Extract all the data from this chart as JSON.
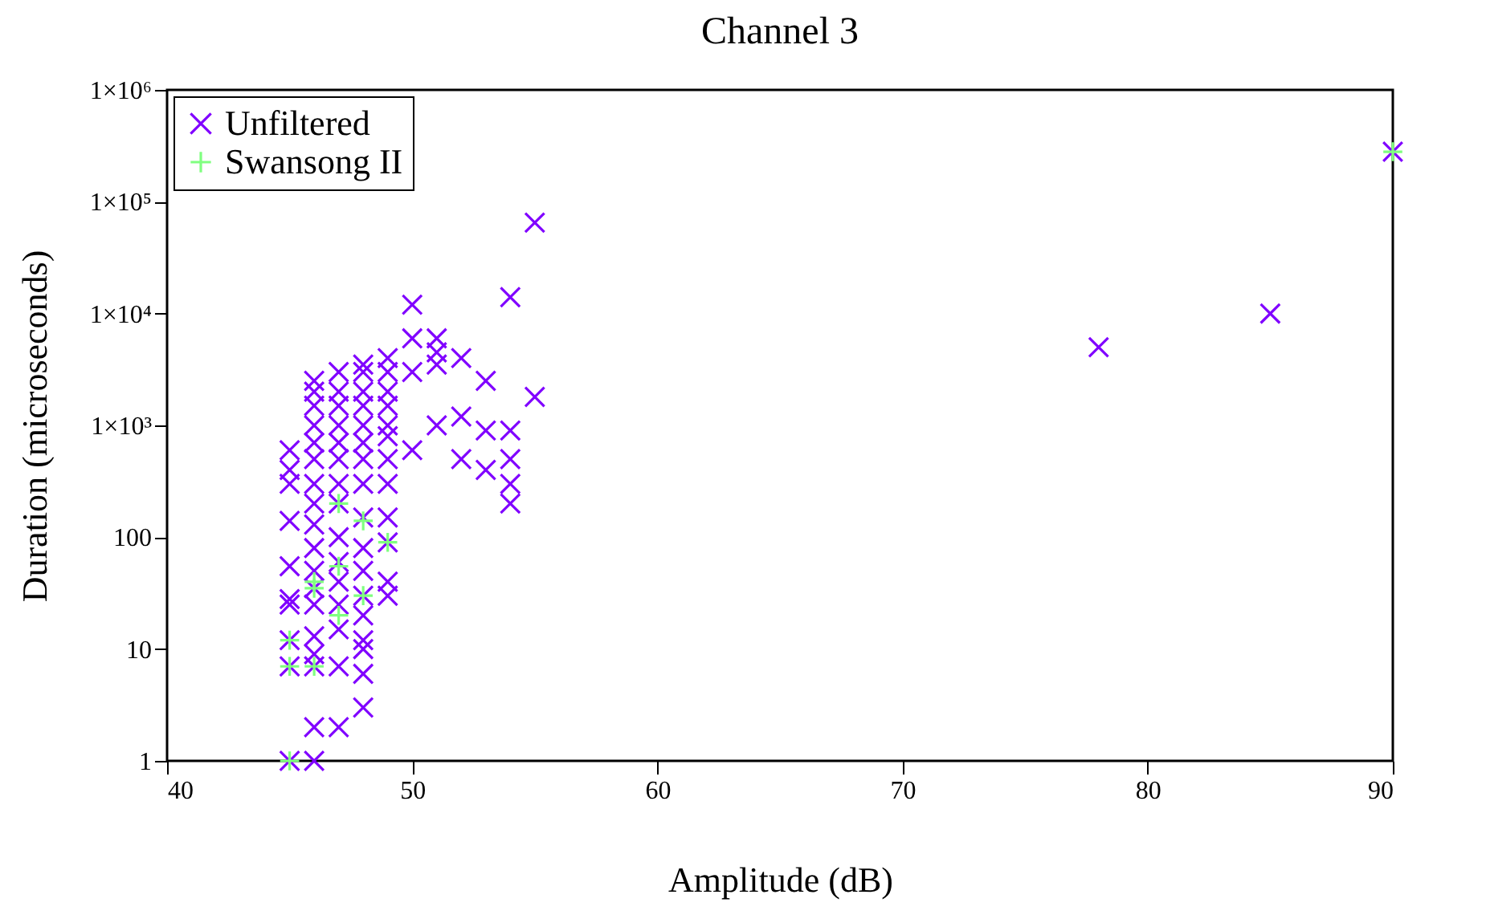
{
  "chart_data": {
    "type": "scatter",
    "title": "Channel 3",
    "xlabel": "Amplitude (dB)",
    "ylabel": "Duration (microseconds)",
    "log": "y",
    "grid": false,
    "legend": "top left",
    "marker": "cross",
    "xlim": [
      40,
      90
    ],
    "xticks": [
      40,
      50,
      60,
      70,
      80,
      90
    ],
    "ylim": [
      1,
      1000000
    ],
    "yticks": [
      1,
      10,
      100,
      {
        "value": 1000,
        "label": "1×10³"
      },
      {
        "value": 10000,
        "label": "1×10⁴"
      },
      {
        "value": 100000,
        "label": "1×10⁵"
      },
      {
        "value": 1000000,
        "label": "1×10⁶"
      }
    ],
    "series": [
      {
        "name": "Unfiltered",
        "color": "#8000ff",
        "x": [
          45,
          45,
          45,
          45,
          45,
          45,
          45,
          45,
          45,
          45,
          46,
          46,
          46,
          46,
          46,
          46,
          46,
          46,
          46,
          46,
          46,
          46,
          46,
          46,
          46,
          46,
          46,
          46,
          47,
          47,
          47,
          47,
          47,
          47,
          47,
          47,
          47,
          47,
          47,
          47,
          47,
          47,
          47,
          48,
          48,
          48,
          48,
          48,
          48,
          48,
          48,
          48,
          48,
          48,
          48,
          48,
          48,
          48,
          48,
          48,
          49,
          49,
          49,
          49,
          49,
          49,
          49,
          49,
          49,
          49,
          49,
          49,
          50,
          50,
          50,
          50,
          51,
          51,
          51,
          51,
          52,
          52,
          52,
          53,
          53,
          53,
          54,
          54,
          54,
          54,
          54,
          55,
          55,
          78,
          85,
          90
        ],
        "values": [
          1,
          7,
          12,
          25,
          28,
          55,
          140,
          300,
          400,
          600,
          1,
          2,
          7,
          9,
          13,
          25,
          35,
          50,
          80,
          130,
          200,
          300,
          500,
          700,
          1000,
          1500,
          2000,
          2500,
          2,
          7,
          15,
          25,
          40,
          60,
          100,
          200,
          300,
          500,
          700,
          1000,
          1500,
          2000,
          3000,
          3,
          6,
          10,
          12,
          20,
          30,
          50,
          80,
          150,
          300,
          500,
          700,
          1000,
          1500,
          2000,
          3000,
          3500,
          30,
          40,
          90,
          150,
          300,
          500,
          800,
          1000,
          1500,
          2000,
          3000,
          4000,
          600,
          3000,
          6000,
          12000,
          1000,
          3500,
          4500,
          6000,
          500,
          1200,
          4000,
          400,
          900,
          2500,
          200,
          300,
          500,
          900,
          14000,
          1800,
          65000,
          5000,
          10000,
          280000
        ]
      },
      {
        "name": "Swansong II",
        "color": "#80ff80",
        "x": [
          45,
          45,
          45,
          46,
          46,
          46,
          47,
          47,
          47,
          48,
          48,
          49,
          90
        ],
        "values": [
          1,
          7,
          12,
          7,
          35,
          40,
          55,
          20,
          200,
          30,
          140,
          90,
          280000
        ]
      }
    ]
  }
}
